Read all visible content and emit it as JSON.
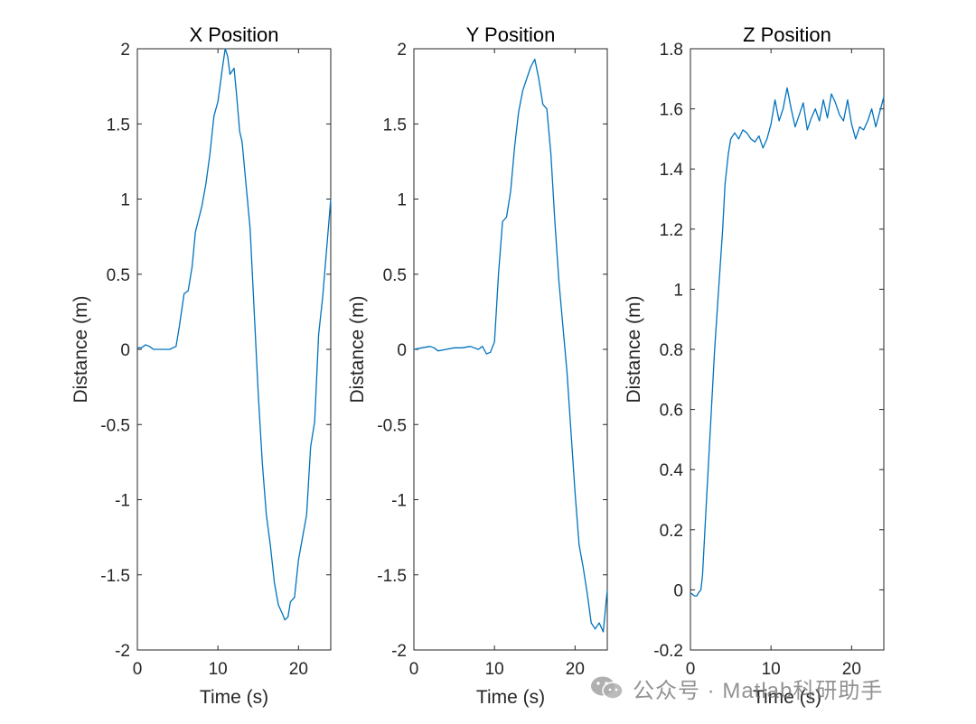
{
  "colors": {
    "line": "#0072BD",
    "axis": "#262626",
    "background": "#ffffff"
  },
  "watermark": {
    "text": "公众号 · Matlab科研助手",
    "icon": "wechat-icon"
  },
  "chart_data": [
    {
      "type": "line",
      "title": "X Position",
      "xlabel": "Time (s)",
      "ylabel": "Distance (m)",
      "xlim": [
        0,
        24
      ],
      "ylim": [
        -2,
        2
      ],
      "xticks": [
        0,
        10,
        20
      ],
      "yticks": [
        -2,
        -1.5,
        -1,
        -0.5,
        0,
        0.5,
        1,
        1.5,
        2
      ],
      "ytick_labels": [
        "-2",
        "-1.5",
        "-1",
        "-0.5",
        "0",
        "0.5",
        "1",
        "1.5",
        "2"
      ],
      "x": [
        0,
        0.5,
        1,
        1.5,
        2,
        3,
        4,
        4.8,
        5.2,
        5.8,
        6.3,
        6.8,
        7.2,
        8,
        8.5,
        9,
        9.5,
        10,
        10.5,
        10.9,
        11.2,
        11.5,
        12,
        12.3,
        12.7,
        13,
        14,
        15,
        15.5,
        16,
        16.5,
        17,
        17.5,
        18,
        18.3,
        18.7,
        19,
        19.5,
        20,
        20.5,
        21,
        21.5,
        22,
        22.5,
        23,
        24
      ],
      "y": [
        0.01,
        0.01,
        0.03,
        0.02,
        0.0,
        0.0,
        0.0,
        0.02,
        0.15,
        0.37,
        0.39,
        0.55,
        0.78,
        0.95,
        1.1,
        1.3,
        1.55,
        1.65,
        1.85,
        2.0,
        1.95,
        1.83,
        1.87,
        1.7,
        1.45,
        1.38,
        0.8,
        -0.3,
        -0.75,
        -1.1,
        -1.3,
        -1.55,
        -1.7,
        -1.76,
        -1.8,
        -1.78,
        -1.68,
        -1.65,
        -1.4,
        -1.25,
        -1.1,
        -0.65,
        -0.48,
        0.1,
        0.35,
        1.0
      ]
    },
    {
      "type": "line",
      "title": "Y Position",
      "xlabel": "Time (s)",
      "ylabel": "Distance (m)",
      "xlim": [
        0,
        24
      ],
      "ylim": [
        -2,
        2
      ],
      "xticks": [
        0,
        10,
        20
      ],
      "yticks": [
        -2,
        -1.5,
        -1,
        -0.5,
        0,
        0.5,
        1,
        1.5,
        2
      ],
      "ytick_labels": [
        "-2",
        "-1.5",
        "-1",
        "-0.5",
        "0",
        "0.5",
        "1",
        "1.5",
        "2"
      ],
      "x": [
        0,
        1,
        2,
        2.5,
        3,
        4,
        5,
        6,
        7,
        8,
        8.5,
        9,
        9.5,
        10,
        10.5,
        11,
        11.5,
        12,
        12.5,
        13,
        13.5,
        14,
        14.5,
        15,
        15.5,
        16,
        16.5,
        17,
        17.5,
        18,
        19,
        20,
        20.5,
        21,
        21.5,
        22,
        22.5,
        23,
        23.5,
        24
      ],
      "y": [
        0.0,
        0.01,
        0.02,
        0.01,
        -0.01,
        0.0,
        0.01,
        0.01,
        0.02,
        0.0,
        0.02,
        -0.03,
        -0.02,
        0.05,
        0.5,
        0.85,
        0.88,
        1.05,
        1.35,
        1.58,
        1.72,
        1.8,
        1.88,
        1.93,
        1.8,
        1.63,
        1.6,
        1.3,
        0.85,
        0.45,
        -0.15,
        -0.95,
        -1.3,
        -1.45,
        -1.62,
        -1.82,
        -1.86,
        -1.82,
        -1.88,
        -1.6
      ]
    },
    {
      "type": "line",
      "title": "Z Position",
      "xlabel": "Time (s)",
      "ylabel": "Distance (m)",
      "xlim": [
        0,
        24
      ],
      "ylim": [
        -0.2,
        1.8
      ],
      "xticks": [
        0,
        10,
        20
      ],
      "yticks": [
        -0.2,
        0,
        0.2,
        0.4,
        0.6,
        0.8,
        1,
        1.2,
        1.4,
        1.6,
        1.8
      ],
      "ytick_labels": [
        "-0.2",
        "0",
        "0.2",
        "0.4",
        "0.6",
        "0.8",
        "1",
        "1.2",
        "1.4",
        "1.6",
        "1.8"
      ],
      "x": [
        0,
        0.5,
        0.8,
        1,
        1.3,
        1.5,
        2,
        2.5,
        3,
        3.5,
        3.8,
        4,
        4.3,
        4.7,
        5,
        5.5,
        6,
        6.5,
        7,
        7.5,
        8,
        8.5,
        9,
        9.5,
        10,
        10.5,
        11,
        11.5,
        12,
        12.5,
        13,
        13.5,
        14,
        14.5,
        15,
        15.5,
        16,
        16.5,
        17,
        17.5,
        18,
        18.5,
        19,
        19.5,
        20,
        20.5,
        21,
        21.5,
        22,
        22.5,
        23,
        23.5,
        24
      ],
      "y": [
        -0.01,
        -0.02,
        -0.02,
        -0.01,
        0.0,
        0.05,
        0.3,
        0.55,
        0.8,
        1.0,
        1.12,
        1.2,
        1.35,
        1.45,
        1.5,
        1.52,
        1.5,
        1.53,
        1.52,
        1.5,
        1.49,
        1.51,
        1.47,
        1.5,
        1.55,
        1.63,
        1.56,
        1.6,
        1.67,
        1.6,
        1.54,
        1.58,
        1.62,
        1.53,
        1.57,
        1.6,
        1.56,
        1.63,
        1.57,
        1.65,
        1.62,
        1.58,
        1.56,
        1.63,
        1.55,
        1.5,
        1.54,
        1.53,
        1.56,
        1.6,
        1.54,
        1.59,
        1.64
      ]
    }
  ]
}
